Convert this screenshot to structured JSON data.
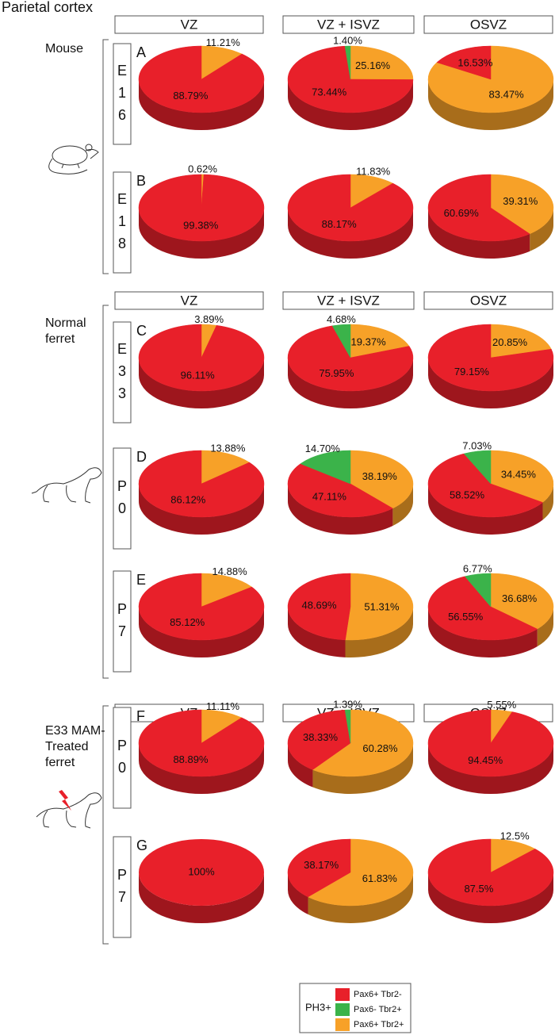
{
  "title": "Parietal cortex",
  "sections": [
    {
      "label": [
        "Mouse"
      ],
      "headers": [
        "VZ",
        "VZ + ISVZ",
        "OSVZ"
      ]
    },
    {
      "label": [
        "Normal",
        "ferret"
      ],
      "headers": [
        "VZ",
        "VZ + ISVZ",
        "OSVZ"
      ]
    },
    {
      "label": [
        "E33 MAM-",
        "Treated",
        "ferret"
      ],
      "headers": [
        "VZ",
        "VZ + ISVZ",
        "OSVZ"
      ]
    }
  ],
  "rows": [
    {
      "letter": "A",
      "age": [
        "E",
        "1",
        "6"
      ]
    },
    {
      "letter": "B",
      "age": [
        "E",
        "1",
        "8"
      ]
    },
    {
      "letter": "C",
      "age": [
        "E",
        "3",
        "3"
      ]
    },
    {
      "letter": "D",
      "age": [
        "P",
        "0"
      ]
    },
    {
      "letter": "E",
      "age": [
        "P",
        "7"
      ]
    },
    {
      "letter": "F",
      "age": [
        "P",
        "0"
      ]
    },
    {
      "letter": "G",
      "age": [
        "P",
        "7"
      ]
    }
  ],
  "legend": {
    "title": "PH3+",
    "items": [
      {
        "name": "Pax6+ Tbr2-",
        "color": "#e8202a"
      },
      {
        "name": "Pax6- Tbr2+",
        "color": "#3bb34a"
      },
      {
        "name": "Pax6+ Tbr2+",
        "color": "#f7a128"
      }
    ]
  },
  "chart_data": [
    {
      "type": "pie",
      "values": [
        11.21,
        88.79
      ],
      "value_labels": [
        "11.21%",
        "88.79%"
      ],
      "colors": [
        "#f7a128",
        "#e8202a"
      ]
    },
    {
      "type": "pie",
      "values": [
        25.16,
        73.44,
        1.4
      ],
      "value_labels": [
        "25.16%",
        "73.44%",
        "1.40%"
      ],
      "colors": [
        "#f7a128",
        "#e8202a",
        "#3bb34a"
      ]
    },
    {
      "type": "pie",
      "values": [
        83.47,
        16.53
      ],
      "value_labels": [
        "83.47%",
        "16.53%"
      ],
      "colors": [
        "#f7a128",
        "#e8202a"
      ]
    },
    {
      "type": "pie",
      "values": [
        0.62,
        99.38
      ],
      "value_labels": [
        "0.62%",
        "99.38%"
      ],
      "colors": [
        "#f7a128",
        "#e8202a"
      ]
    },
    {
      "type": "pie",
      "values": [
        11.83,
        88.17
      ],
      "value_labels": [
        "11.83%",
        "88.17%"
      ],
      "colors": [
        "#f7a128",
        "#e8202a"
      ]
    },
    {
      "type": "pie",
      "values": [
        39.31,
        60.69
      ],
      "value_labels": [
        "39.31%",
        "60.69%"
      ],
      "colors": [
        "#f7a128",
        "#e8202a"
      ]
    },
    {
      "type": "pie",
      "values": [
        3.89,
        96.11
      ],
      "value_labels": [
        "3.89%",
        "96.11%"
      ],
      "colors": [
        "#f7a128",
        "#e8202a"
      ]
    },
    {
      "type": "pie",
      "values": [
        19.37,
        75.95,
        4.68
      ],
      "value_labels": [
        "19.37%",
        "75.95%",
        "4.68%"
      ],
      "colors": [
        "#f7a128",
        "#e8202a",
        "#3bb34a"
      ]
    },
    {
      "type": "pie",
      "values": [
        20.85,
        79.15
      ],
      "value_labels": [
        "20.85%",
        "79.15%"
      ],
      "colors": [
        "#f7a128",
        "#e8202a"
      ]
    },
    {
      "type": "pie",
      "values": [
        13.88,
        86.12
      ],
      "value_labels": [
        "13.88%",
        "86.12%"
      ],
      "colors": [
        "#f7a128",
        "#e8202a"
      ]
    },
    {
      "type": "pie",
      "values": [
        38.19,
        47.11,
        14.7
      ],
      "value_labels": [
        "38.19%",
        "47.11%",
        "14.70%"
      ],
      "colors": [
        "#f7a128",
        "#e8202a",
        "#3bb34a"
      ]
    },
    {
      "type": "pie",
      "values": [
        34.45,
        58.52,
        7.03
      ],
      "value_labels": [
        "34.45%",
        "58.52%",
        "7.03%"
      ],
      "colors": [
        "#f7a128",
        "#e8202a",
        "#3bb34a"
      ]
    },
    {
      "type": "pie",
      "values": [
        14.88,
        85.12
      ],
      "value_labels": [
        "14.88%",
        "85.12%"
      ],
      "colors": [
        "#f7a128",
        "#e8202a"
      ]
    },
    {
      "type": "pie",
      "values": [
        51.31,
        48.69
      ],
      "value_labels": [
        "51.31%",
        "48.69%"
      ],
      "colors": [
        "#f7a128",
        "#e8202a"
      ]
    },
    {
      "type": "pie",
      "values": [
        36.68,
        56.55,
        6.77
      ],
      "value_labels": [
        "36.68%",
        "56.55%",
        "6.77%"
      ],
      "colors": [
        "#f7a128",
        "#e8202a",
        "#3bb34a"
      ]
    },
    {
      "type": "pie",
      "values": [
        11.11,
        88.89
      ],
      "value_labels": [
        "11.11%",
        "88.89%"
      ],
      "colors": [
        "#f7a128",
        "#e8202a"
      ]
    },
    {
      "type": "pie",
      "values": [
        60.28,
        38.33,
        1.39
      ],
      "value_labels": [
        "60.28%",
        "38.33%",
        "1.39%"
      ],
      "colors": [
        "#f7a128",
        "#e8202a",
        "#3bb34a"
      ]
    },
    {
      "type": "pie",
      "values": [
        5.55,
        94.45
      ],
      "value_labels": [
        "5.55%",
        "94.45%"
      ],
      "colors": [
        "#f7a128",
        "#e8202a"
      ]
    },
    {
      "type": "pie",
      "values": [
        100
      ],
      "value_labels": [
        "100%"
      ],
      "colors": [
        "#e8202a"
      ]
    },
    {
      "type": "pie",
      "values": [
        61.83,
        38.17
      ],
      "value_labels": [
        "61.83%",
        "38.17%"
      ],
      "colors": [
        "#f7a128",
        "#e8202a"
      ]
    },
    {
      "type": "pie",
      "values": [
        12.5,
        87.5
      ],
      "value_labels": [
        "12.5%",
        "87.5%"
      ],
      "colors": [
        "#f7a128",
        "#e8202a"
      ]
    }
  ]
}
